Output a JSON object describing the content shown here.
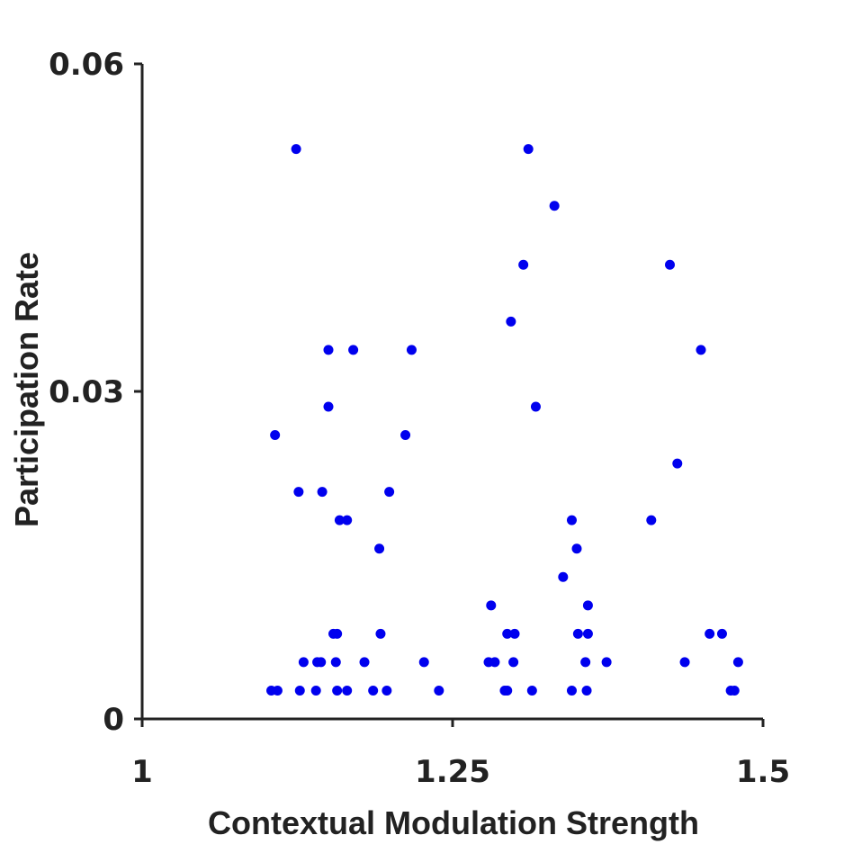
{
  "chart_data": {
    "type": "scatter",
    "title": "",
    "xlabel": "Contextual Modulation Strength",
    "ylabel": "Participation Rate",
    "xlim": [
      1,
      1.5
    ],
    "ylim": [
      0,
      0.06
    ],
    "x_ticks": [
      1,
      1.25,
      1.5
    ],
    "y_ticks": [
      0,
      0.03,
      0.06
    ],
    "x_tick_labels": [
      "1",
      "1.25",
      "1.5"
    ],
    "y_tick_labels": [
      "0",
      "0.03",
      "0.06"
    ],
    "grid": false,
    "marker_color": "#0000ee",
    "series": [
      {
        "points": [
          [
            1.104,
            0.0026
          ],
          [
            1.109,
            0.0026
          ],
          [
            1.107,
            0.026
          ],
          [
            1.124,
            0.0522
          ],
          [
            1.126,
            0.0208
          ],
          [
            1.127,
            0.0026
          ],
          [
            1.13,
            0.0052
          ],
          [
            1.14,
            0.0026
          ],
          [
            1.141,
            0.0052
          ],
          [
            1.144,
            0.0052
          ],
          [
            1.145,
            0.0208
          ],
          [
            1.15,
            0.0286
          ],
          [
            1.15,
            0.0338
          ],
          [
            1.154,
            0.0078
          ],
          [
            1.156,
            0.0052
          ],
          [
            1.157,
            0.0026
          ],
          [
            1.157,
            0.0078
          ],
          [
            1.159,
            0.0182
          ],
          [
            1.165,
            0.0182
          ],
          [
            1.165,
            0.0026
          ],
          [
            1.17,
            0.0338
          ],
          [
            1.179,
            0.0052
          ],
          [
            1.186,
            0.0026
          ],
          [
            1.191,
            0.0156
          ],
          [
            1.192,
            0.0078
          ],
          [
            1.197,
            0.0026
          ],
          [
            1.199,
            0.0208
          ],
          [
            1.212,
            0.026
          ],
          [
            1.217,
            0.0338
          ],
          [
            1.227,
            0.0052
          ],
          [
            1.239,
            0.0026
          ],
          [
            1.279,
            0.0052
          ],
          [
            1.281,
            0.0104
          ],
          [
            1.284,
            0.0052
          ],
          [
            1.292,
            0.0026
          ],
          [
            1.294,
            0.0026
          ],
          [
            1.294,
            0.0078
          ],
          [
            1.297,
            0.0364
          ],
          [
            1.299,
            0.0052
          ],
          [
            1.3,
            0.0078
          ],
          [
            1.307,
            0.0416
          ],
          [
            1.311,
            0.0522
          ],
          [
            1.314,
            0.0026
          ],
          [
            1.317,
            0.0286
          ],
          [
            1.332,
            0.047
          ],
          [
            1.339,
            0.013
          ],
          [
            1.346,
            0.0182
          ],
          [
            1.346,
            0.0026
          ],
          [
            1.35,
            0.0156
          ],
          [
            1.351,
            0.0078
          ],
          [
            1.357,
            0.0052
          ],
          [
            1.358,
            0.0026
          ],
          [
            1.359,
            0.0078
          ],
          [
            1.359,
            0.0104
          ],
          [
            1.374,
            0.0052
          ],
          [
            1.41,
            0.0182
          ],
          [
            1.425,
            0.0416
          ],
          [
            1.431,
            0.0234
          ],
          [
            1.437,
            0.0052
          ],
          [
            1.45,
            0.0338
          ],
          [
            1.457,
            0.0078
          ],
          [
            1.467,
            0.0078
          ],
          [
            1.474,
            0.0026
          ],
          [
            1.477,
            0.0026
          ],
          [
            1.48,
            0.0052
          ]
        ]
      }
    ]
  }
}
